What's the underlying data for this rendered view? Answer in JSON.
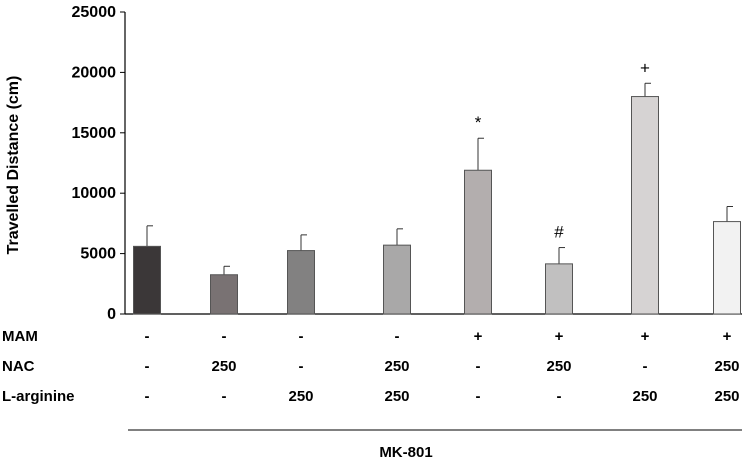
{
  "chart_data": {
    "type": "bar",
    "title": "",
    "ylabel": "Travelled Distance (cm)",
    "ylim": [
      0,
      25000
    ],
    "yticks": [
      0,
      5000,
      10000,
      15000,
      20000,
      25000
    ],
    "values": [
      5600,
      3250,
      5250,
      5700,
      11900,
      4150,
      18000,
      7650
    ],
    "errors": [
      1700,
      700,
      1300,
      1350,
      2650,
      1350,
      1100,
      1250
    ],
    "bar_colors": [
      "#3b3738",
      "#797273",
      "#828181",
      "#a9a8a8",
      "#b3aeae",
      "#c1c0c0",
      "#d6d3d3",
      "#f2f2f2"
    ],
    "annotations": [
      "",
      "",
      "",
      "",
      "*",
      "#",
      "+",
      ""
    ],
    "conditions": [
      {
        "label": "MAM",
        "values": [
          "-",
          "-",
          "-",
          "-",
          "+",
          "+",
          "+",
          "+"
        ]
      },
      {
        "label": "NAC",
        "values": [
          "-",
          "250",
          "-",
          "250",
          "-",
          "250",
          "-",
          "250"
        ]
      },
      {
        "label": "L-arginine",
        "values": [
          "-",
          "-",
          "250",
          "250",
          "-",
          "-",
          "250",
          "250"
        ]
      }
    ],
    "group_label": "MK-801",
    "grid": false,
    "legend": "none"
  }
}
